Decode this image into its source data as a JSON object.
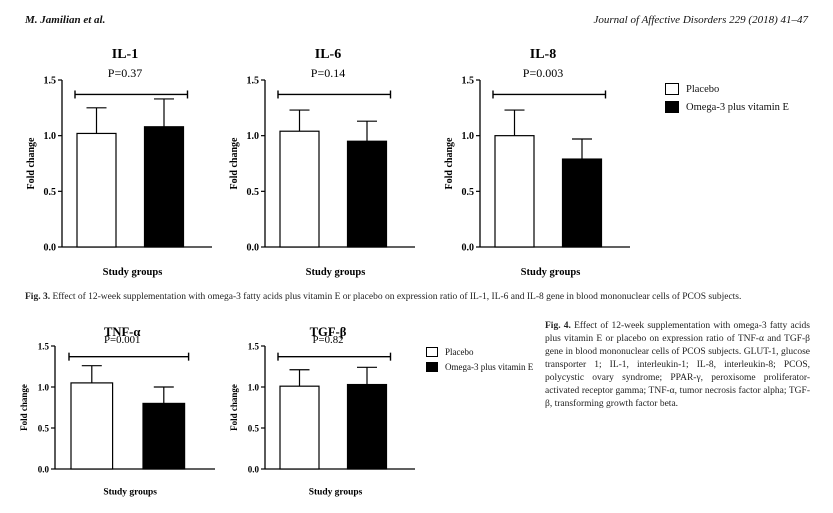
{
  "header": {
    "authors": "M. Jamilian et al.",
    "journal": "Journal of Affective Disorders 229 (2018) 41–47"
  },
  "legend": {
    "placebo": "Placebo",
    "treatment": "Omega-3 plus vitamin E"
  },
  "colors": {
    "placebo": "#ffffff",
    "treatment": "#000000",
    "stroke": "#000000"
  },
  "fig3": {
    "label": "Fig. 3.",
    "text": "Effect of 12-week supplementation with omega-3 fatty acids plus vitamin E or placebo on expression ratio of IL-1, IL-6 and IL-8 gene in blood mononuclear cells of PCOS subjects."
  },
  "fig4": {
    "label": "Fig. 4.",
    "text": "Effect of 12-week supplementation with omega-3 fatty acids plus vitamin E or placebo on expression ratio of TNF-α and TGF-β gene in blood mononuclear cells of PCOS subjects. GLUT-1, glucose transporter 1; IL-1, interleukin-1; IL-8, interleukin-8; PCOS, polycystic ovary syndrome; PPAR-γ, peroxisome proliferator-activated receptor gamma; TNF-α, tumor necrosis factor alpha; TGF-β, transforming growth factor beta."
  },
  "chart_data": [
    {
      "type": "bar",
      "title": "IL-1",
      "annotation": "P=0.37",
      "xlabel": "Study groups",
      "ylabel": "Fold change",
      "ylim": [
        0,
        1.5
      ],
      "yticks": [
        "0.0",
        "0.5",
        "1.0",
        "1.5"
      ],
      "categories": [
        "Placebo",
        "Omega-3 plus vitamin E"
      ],
      "values": [
        1.02,
        1.08
      ],
      "errors": [
        0.23,
        0.25
      ]
    },
    {
      "type": "bar",
      "title": "IL-6",
      "annotation": "P=0.14",
      "xlabel": "Study groups",
      "ylabel": "Fold change",
      "ylim": [
        0,
        1.5
      ],
      "yticks": [
        "0.0",
        "0.5",
        "1.0",
        "1.5"
      ],
      "categories": [
        "Placebo",
        "Omega-3 plus vitamin E"
      ],
      "values": [
        1.04,
        0.95
      ],
      "errors": [
        0.19,
        0.18
      ]
    },
    {
      "type": "bar",
      "title": "IL-8",
      "annotation": "P=0.003",
      "xlabel": "Study groups",
      "ylabel": "Fold change",
      "ylim": [
        0,
        1.5
      ],
      "yticks": [
        "0.0",
        "0.5",
        "1.0",
        "1.5"
      ],
      "categories": [
        "Placebo",
        "Omega-3 plus vitamin E"
      ],
      "values": [
        1.0,
        0.79
      ],
      "errors": [
        0.23,
        0.18
      ]
    },
    {
      "type": "bar",
      "title": "TNF-α",
      "annotation": "P=0.001",
      "xlabel": "Study groups",
      "ylabel": "Fold change",
      "ylim": [
        0,
        1.5
      ],
      "yticks": [
        "0.0",
        "0.5",
        "1.0",
        "1.5"
      ],
      "categories": [
        "Placebo",
        "Omega-3 plus vitamin E"
      ],
      "values": [
        1.05,
        0.8
      ],
      "errors": [
        0.21,
        0.2
      ]
    },
    {
      "type": "bar",
      "title": "TGF-β",
      "annotation": "P=0.82",
      "xlabel": "Study groups",
      "ylabel": "Fold change",
      "ylim": [
        0,
        1.5
      ],
      "yticks": [
        "0.0",
        "0.5",
        "1.0",
        "1.5"
      ],
      "categories": [
        "Placebo",
        "Omega-3 plus vitamin E"
      ],
      "values": [
        1.01,
        1.03
      ],
      "errors": [
        0.2,
        0.21
      ]
    }
  ]
}
